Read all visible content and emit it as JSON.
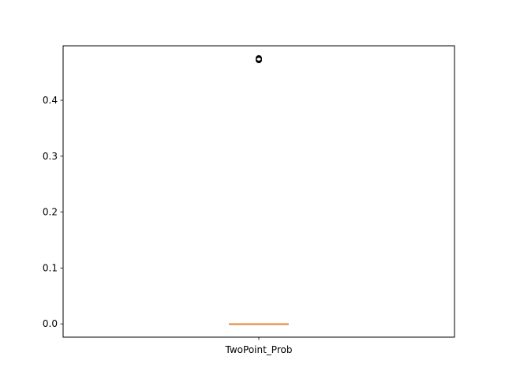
{
  "chart_data": {
    "type": "box",
    "categories": [
      "TwoPoint_Prob"
    ],
    "boxes": [
      {
        "name": "TwoPoint_Prob",
        "whisker_low": 0.0,
        "q1": 0.0,
        "median": 0.0,
        "q3": 0.0,
        "whisker_high": 0.0,
        "outliers": [
          0.473,
          0.474,
          0.472,
          0.475
        ]
      }
    ],
    "title": "",
    "xlabel": "",
    "ylabel": "",
    "ylim": [
      -0.0237,
      0.4975
    ],
    "yticks": [
      0.0,
      0.1,
      0.2,
      0.3,
      0.4
    ],
    "ytick_labels": [
      "0.0",
      "0.1",
      "0.2",
      "0.3",
      "0.4"
    ],
    "grid": false,
    "colors": {
      "box": "#000000",
      "median": "#ff7f0e",
      "outlier": "#000000"
    }
  }
}
